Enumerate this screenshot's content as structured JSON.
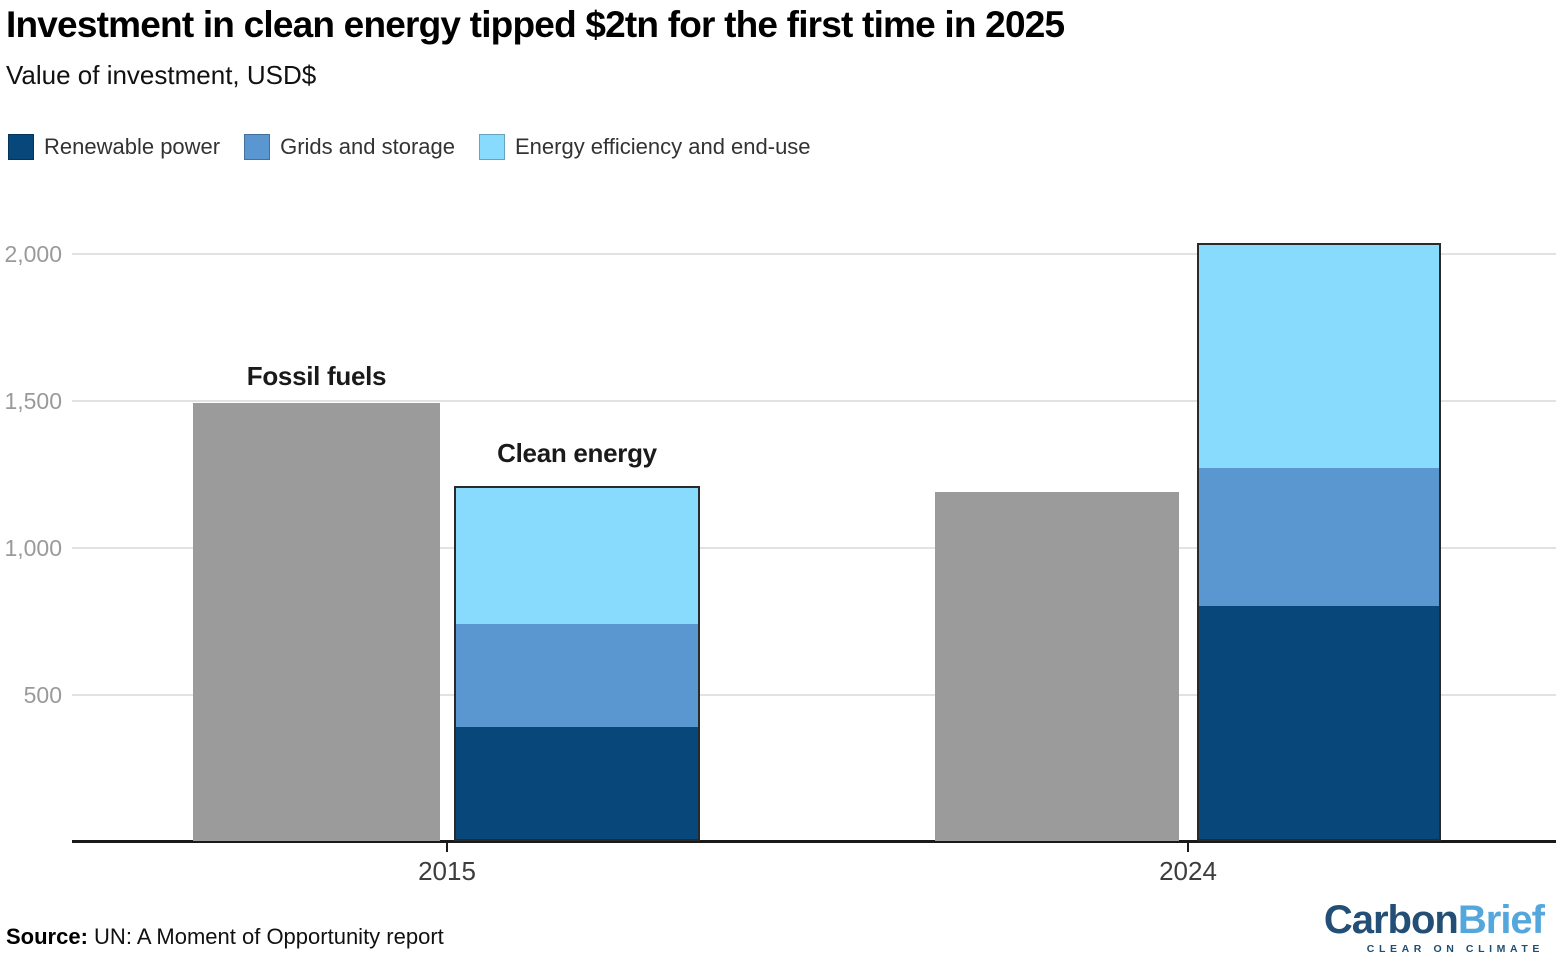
{
  "header": {
    "title": "Investment in clean energy tipped $2tn for the first time in 2025",
    "subtitle": "Value of investment, USD$"
  },
  "legend": [
    {
      "label": "Renewable power",
      "color": "#07477a"
    },
    {
      "label": "Grids and storage",
      "color": "#5a96d0"
    },
    {
      "label": "Energy efficiency and end-use",
      "color": "#88dbfc"
    }
  ],
  "chart_data": {
    "type": "bar",
    "stacked": true,
    "title": "Investment in clean energy tipped $2tn for the first time in 2025",
    "subtitle": "Value of investment, USD$",
    "ylabel": "Value of investment, USD$ (billions)",
    "xlabel": "",
    "categories": [
      "2015",
      "2024"
    ],
    "yticks": [
      500,
      1000,
      1500,
      2000
    ],
    "ylim": [
      0,
      2100
    ],
    "grid": true,
    "annotations": [
      "Fossil fuels",
      "Clean energy"
    ],
    "colors": {
      "Fossil fuels": "#9b9b9b",
      "Renewable power": "#07477a",
      "Grids and storage": "#5a96d0",
      "Energy efficiency and end-use": "#88dbfc"
    },
    "bars": [
      {
        "id": "fossil-2015",
        "category": "2015",
        "kind": "fossil",
        "segments": [
          {
            "name": "Fossil fuels",
            "value": 1490
          }
        ]
      },
      {
        "id": "clean-2015",
        "category": "2015",
        "kind": "clean",
        "segments": [
          {
            "name": "Renewable power",
            "value": 390
          },
          {
            "name": "Grids and storage",
            "value": 350
          },
          {
            "name": "Energy efficiency and end-use",
            "value": 470
          }
        ]
      },
      {
        "id": "fossil-2024",
        "category": "2024",
        "kind": "fossil",
        "segments": [
          {
            "name": "Fossil fuels",
            "value": 1190
          }
        ]
      },
      {
        "id": "clean-2024",
        "category": "2024",
        "kind": "clean",
        "segments": [
          {
            "name": "Renewable power",
            "value": 800
          },
          {
            "name": "Grids and storage",
            "value": 470
          },
          {
            "name": "Energy efficiency and end-use",
            "value": 765
          }
        ]
      }
    ]
  },
  "source": {
    "label": "Source:",
    "text": "UN: A Moment of Opportunity report"
  },
  "logo": {
    "part1": "Carbon",
    "part2": "Brief",
    "tagline": "CLEAR ON CLIMATE"
  }
}
